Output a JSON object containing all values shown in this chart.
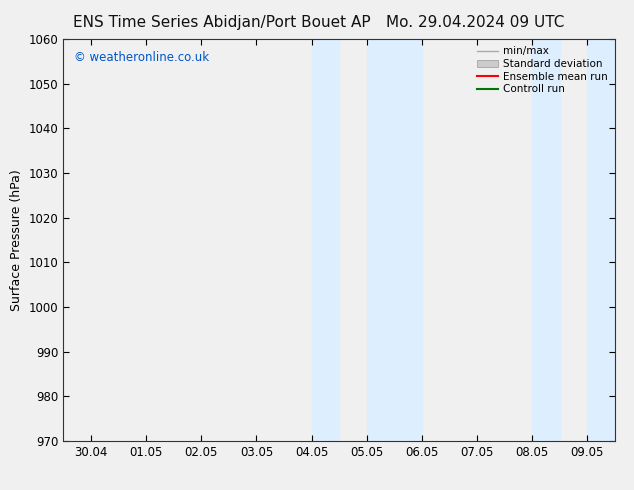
{
  "title_left": "ENS Time Series Abidjan/Port Bouet AP",
  "title_right": "Mo. 29.04.2024 09 UTC",
  "ylabel": "Surface Pressure (hPa)",
  "ylim": [
    970,
    1060
  ],
  "yticks": [
    970,
    980,
    990,
    1000,
    1010,
    1020,
    1030,
    1040,
    1050,
    1060
  ],
  "xlim_start": -0.5,
  "xlim_end": 9.5,
  "xtick_labels": [
    "30.04",
    "01.05",
    "02.05",
    "03.05",
    "04.05",
    "05.05",
    "06.05",
    "07.05",
    "08.05",
    "09.05"
  ],
  "xtick_positions": [
    0,
    1,
    2,
    3,
    4,
    5,
    6,
    7,
    8,
    9
  ],
  "shaded_bands": [
    {
      "x_start": 4.0,
      "x_end": 4.5,
      "color": "#ddeeff"
    },
    {
      "x_start": 5.0,
      "x_end": 6.0,
      "color": "#ddeeff"
    },
    {
      "x_start": 8.0,
      "x_end": 8.5,
      "color": "#ddeeff"
    },
    {
      "x_start": 9.0,
      "x_end": 9.5,
      "color": "#ddeeff"
    }
  ],
  "watermark": "© weatheronline.co.uk",
  "watermark_color": "#0055cc",
  "legend_labels": [
    "min/max",
    "Standard deviation",
    "Ensemble mean run",
    "Controll run"
  ],
  "legend_colors": [
    "#aaaaaa",
    "#cccccc",
    "#ff0000",
    "#007700"
  ],
  "background_color": "#f0f0f0",
  "plot_bg_color": "#f5f5f5",
  "title_fontsize": 11,
  "tick_fontsize": 8.5,
  "ylabel_fontsize": 9
}
